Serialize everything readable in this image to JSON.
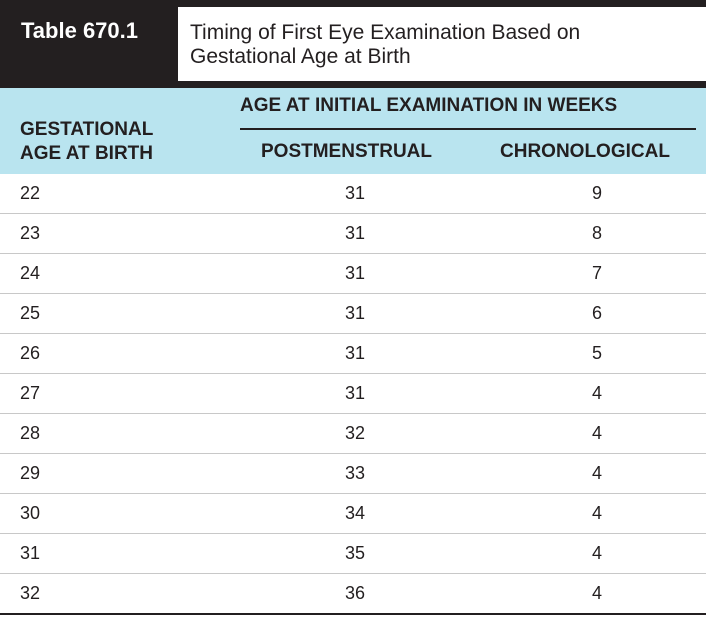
{
  "table": {
    "label": "Table 670.1",
    "title": "Timing of First Eye Examination Based on Gestational Age at Birth",
    "headers": {
      "gestational": "GESTATIONAL AGE AT BIRTH",
      "age_group": "AGE AT INITIAL EXAMINATION IN WEEKS",
      "postmenstrual": "POSTMENSTRUAL",
      "chronological": "CHRONOLOGICAL"
    },
    "rows": [
      {
        "gestational": "22",
        "postmenstrual": "31",
        "chronological": "9"
      },
      {
        "gestational": "23",
        "postmenstrual": "31",
        "chronological": "8"
      },
      {
        "gestational": "24",
        "postmenstrual": "31",
        "chronological": "7"
      },
      {
        "gestational": "25",
        "postmenstrual": "31",
        "chronological": "6"
      },
      {
        "gestational": "26",
        "postmenstrual": "31",
        "chronological": "5"
      },
      {
        "gestational": "27",
        "postmenstrual": "31",
        "chronological": "4"
      },
      {
        "gestational": "28",
        "postmenstrual": "32",
        "chronological": "4"
      },
      {
        "gestational": "29",
        "postmenstrual": "33",
        "chronological": "4"
      },
      {
        "gestational": "30",
        "postmenstrual": "34",
        "chronological": "4"
      },
      {
        "gestational": "31",
        "postmenstrual": "35",
        "chronological": "4"
      },
      {
        "gestational": "32",
        "postmenstrual": "36",
        "chronological": "4"
      }
    ]
  },
  "colors": {
    "header_dark": "#231f20",
    "header_band": "#b9e4ef",
    "text": "#231f20"
  }
}
